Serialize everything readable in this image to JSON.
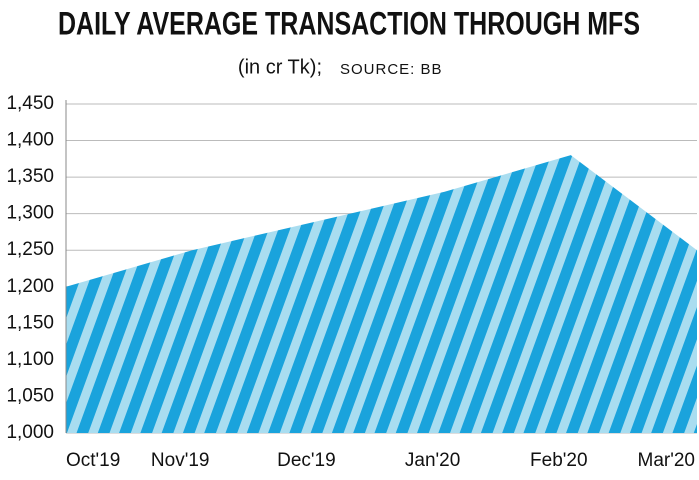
{
  "chart_data": {
    "type": "area",
    "title": "DAILY AVERAGE TRANSACTION THROUGH MFS",
    "subtitle": "(in cr Tk);",
    "source": "SOURCE: BB",
    "categories": [
      "Oct'19",
      "Nov'19",
      "Dec'19",
      "Jan'20",
      "Feb'20",
      "Mar'20"
    ],
    "values": [
      1200,
      1250,
      1290,
      1330,
      1380,
      1250
    ],
    "color": "#1aa3dc",
    "ylim": [
      1000,
      1450
    ],
    "yticks": [
      {
        "value": 1000,
        "label": "1,000"
      },
      {
        "value": 1050,
        "label": "1,050"
      },
      {
        "value": 1100,
        "label": "1,100"
      },
      {
        "value": 1150,
        "label": "1,150"
      },
      {
        "value": 1200,
        "label": "1,200"
      },
      {
        "value": 1250,
        "label": "1,250"
      },
      {
        "value": 1300,
        "label": "1,300"
      },
      {
        "value": 1350,
        "label": "1,350"
      },
      {
        "value": 1400,
        "label": "1,400"
      },
      {
        "value": 1450,
        "label": "1,450"
      }
    ],
    "grid": true
  }
}
